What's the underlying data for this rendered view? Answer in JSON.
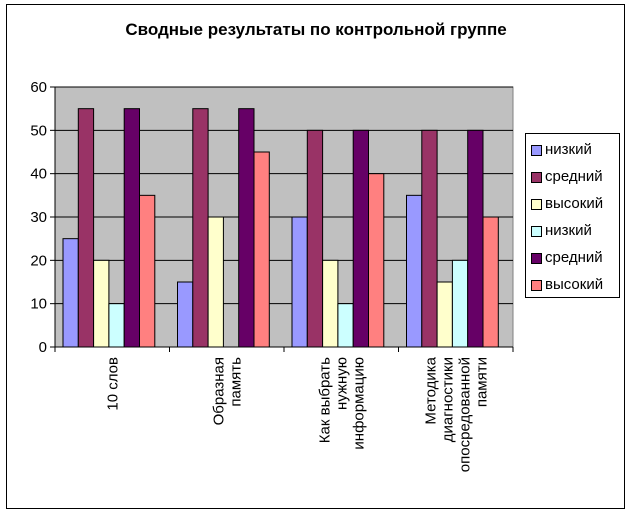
{
  "chart_data": {
    "type": "bar",
    "title": "Сводные результаты по контрольной группе",
    "categories": [
      [
        "10 слов"
      ],
      [
        "Образная",
        "память"
      ],
      [
        "Как выбрать",
        "нужную",
        "информацию"
      ],
      [
        "Методика",
        "диагностики",
        "опосредованной",
        "памяти"
      ]
    ],
    "series": [
      {
        "name": "низкий",
        "color": "#9999ff",
        "values": [
          25,
          15,
          30,
          35
        ]
      },
      {
        "name": "средний",
        "color": "#993366",
        "values": [
          55,
          55,
          50,
          50
        ]
      },
      {
        "name": "высокий",
        "color": "#ffffcc",
        "values": [
          20,
          30,
          20,
          15
        ]
      },
      {
        "name": "низкий",
        "color": "#ccffff",
        "values": [
          10,
          0,
          10,
          20
        ]
      },
      {
        "name": "средний",
        "color": "#660066",
        "values": [
          55,
          55,
          50,
          50
        ]
      },
      {
        "name": "высокий",
        "color": "#ff8080",
        "values": [
          35,
          45,
          40,
          30
        ]
      }
    ],
    "ylim": [
      0,
      60
    ],
    "yticks": [
      0,
      10,
      20,
      30,
      40,
      50,
      60
    ],
    "grid": true,
    "plot_background": "#c0c0c0",
    "legend": "right"
  }
}
